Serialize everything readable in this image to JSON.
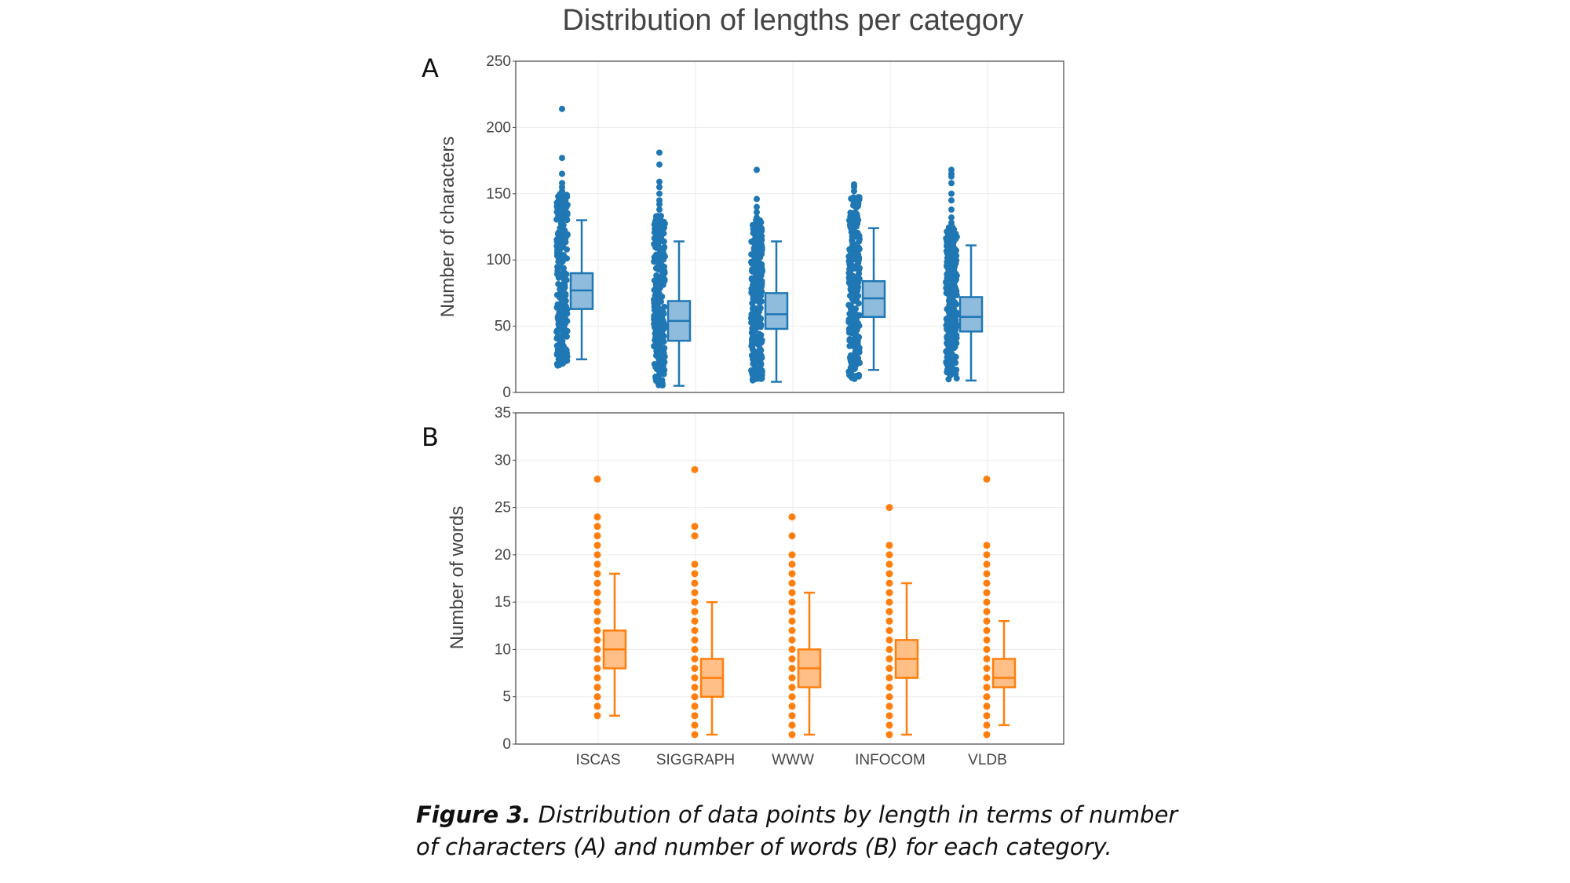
{
  "title": "Distribution of lengths per category",
  "caption": {
    "label": "Figure 3.",
    "text": "Distribution of data points by length in terms of number of characters (A) and number of words (B) for each category."
  },
  "colors": {
    "panel_a": "#1f77b4",
    "panel_a_fill": "#8fbbdc",
    "panel_b": "#ff7f0e",
    "panel_b_fill": "#ffbf86"
  },
  "chart_data": [
    {
      "type": "box",
      "panel": "A",
      "ylabel": "Number of characters",
      "ylim": [
        0,
        250
      ],
      "yticks": [
        0,
        50,
        100,
        150,
        200,
        250
      ],
      "grid": true,
      "categories": [
        "ISCAS",
        "SIGGRAPH",
        "WWW",
        "INFOCOM",
        "VLDB"
      ],
      "boxes": [
        {
          "min": 25,
          "q1": 63,
          "median": 77,
          "q3": 90,
          "max": 130
        },
        {
          "min": 5,
          "q1": 39,
          "median": 54,
          "q3": 69,
          "max": 114
        },
        {
          "min": 8,
          "q1": 48,
          "median": 59,
          "q3": 75,
          "max": 114
        },
        {
          "min": 17,
          "q1": 57,
          "median": 71,
          "q3": 84,
          "max": 124
        },
        {
          "min": 9,
          "q1": 46,
          "median": 57,
          "q3": 72,
          "max": 111
        }
      ],
      "points_range": [
        [
          20,
          150
        ],
        [
          5,
          135
        ],
        [
          8,
          130
        ],
        [
          10,
          150
        ],
        [
          10,
          125
        ]
      ],
      "outliers": [
        [
          152,
          155,
          158,
          165,
          177,
          214
        ],
        [
          138,
          142,
          145,
          150,
          155,
          159,
          172,
          181
        ],
        [
          132,
          136,
          140,
          146,
          168
        ],
        [
          152,
          155,
          157
        ],
        [
          128,
          132,
          138,
          145,
          150,
          158,
          163,
          165,
          168
        ]
      ]
    },
    {
      "type": "box",
      "panel": "B",
      "ylabel": "Number of words",
      "ylim": [
        0,
        35
      ],
      "yticks": [
        0,
        5,
        10,
        15,
        20,
        25,
        30,
        35
      ],
      "grid": true,
      "categories": [
        "ISCAS",
        "SIGGRAPH",
        "WWW",
        "INFOCOM",
        "VLDB"
      ],
      "boxes": [
        {
          "min": 3,
          "q1": 8,
          "median": 10,
          "q3": 12,
          "max": 18
        },
        {
          "min": 1,
          "q1": 5,
          "median": 7,
          "q3": 9,
          "max": 15
        },
        {
          "min": 1,
          "q1": 6,
          "median": 8,
          "q3": 10,
          "max": 16
        },
        {
          "min": 1,
          "q1": 7,
          "median": 9,
          "q3": 11,
          "max": 17
        },
        {
          "min": 2,
          "q1": 6,
          "median": 7,
          "q3": 9,
          "max": 13
        }
      ],
      "points": [
        [
          3,
          4,
          5,
          6,
          7,
          8,
          9,
          10,
          11,
          12,
          13,
          14,
          15,
          16,
          17,
          18,
          19,
          20,
          21,
          22,
          23,
          24,
          28
        ],
        [
          1,
          2,
          3,
          4,
          5,
          6,
          7,
          8,
          9,
          10,
          11,
          12,
          13,
          14,
          15,
          16,
          17,
          18,
          19,
          22,
          23,
          29
        ],
        [
          1,
          2,
          3,
          4,
          5,
          6,
          7,
          8,
          9,
          10,
          11,
          12,
          13,
          14,
          15,
          16,
          17,
          18,
          19,
          20,
          22,
          24
        ],
        [
          1,
          2,
          3,
          4,
          5,
          6,
          7,
          8,
          9,
          10,
          11,
          12,
          13,
          14,
          15,
          16,
          17,
          18,
          19,
          20,
          21,
          25
        ],
        [
          1,
          2,
          3,
          4,
          5,
          6,
          7,
          8,
          9,
          10,
          11,
          12,
          13,
          14,
          15,
          16,
          17,
          18,
          19,
          20,
          21,
          28
        ]
      ]
    }
  ]
}
